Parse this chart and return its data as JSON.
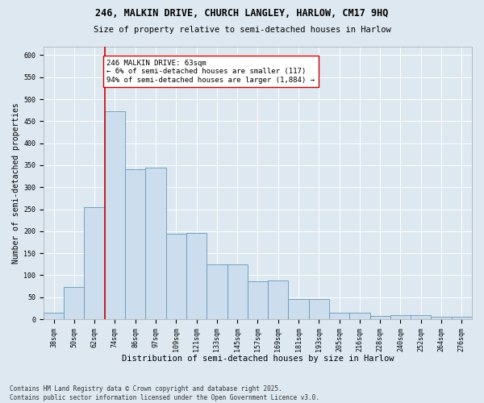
{
  "title_line1": "246, MALKIN DRIVE, CHURCH LANGLEY, HARLOW, CM17 9HQ",
  "title_line2": "Size of property relative to semi-detached houses in Harlow",
  "xlabel": "Distribution of semi-detached houses by size in Harlow",
  "ylabel": "Number of semi-detached properties",
  "categories": [
    "38sqm",
    "50sqm",
    "62sqm",
    "74sqm",
    "86sqm",
    "97sqm",
    "109sqm",
    "121sqm",
    "133sqm",
    "145sqm",
    "157sqm",
    "169sqm",
    "181sqm",
    "193sqm",
    "205sqm",
    "216sqm",
    "228sqm",
    "240sqm",
    "252sqm",
    "264sqm",
    "276sqm"
  ],
  "values": [
    15,
    73,
    255,
    472,
    340,
    345,
    195,
    196,
    125,
    125,
    87,
    88,
    46,
    46,
    15,
    15,
    7,
    9,
    10,
    5,
    5
  ],
  "bar_color": "#ccdded",
  "bar_edge_color": "#6699bb",
  "vline_index": 2.5,
  "vline_color": "#cc0000",
  "annotation_text": "246 MALKIN DRIVE: 63sqm\n← 6% of semi-detached houses are smaller (117)\n94% of semi-detached houses are larger (1,884) →",
  "annotation_box_color": "#ffffff",
  "annotation_box_edge": "#cc0000",
  "ylim": [
    0,
    620
  ],
  "yticks": [
    0,
    50,
    100,
    150,
    200,
    250,
    300,
    350,
    400,
    450,
    500,
    550,
    600
  ],
  "background_color": "#dde8f0",
  "grid_color": "#ffffff",
  "footer": "Contains HM Land Registry data © Crown copyright and database right 2025.\nContains public sector information licensed under the Open Government Licence v3.0.",
  "title_fontsize": 8.5,
  "subtitle_fontsize": 7.5,
  "axis_label_fontsize": 7,
  "tick_fontsize": 6,
  "annotation_fontsize": 6.5,
  "footer_fontsize": 5.5
}
